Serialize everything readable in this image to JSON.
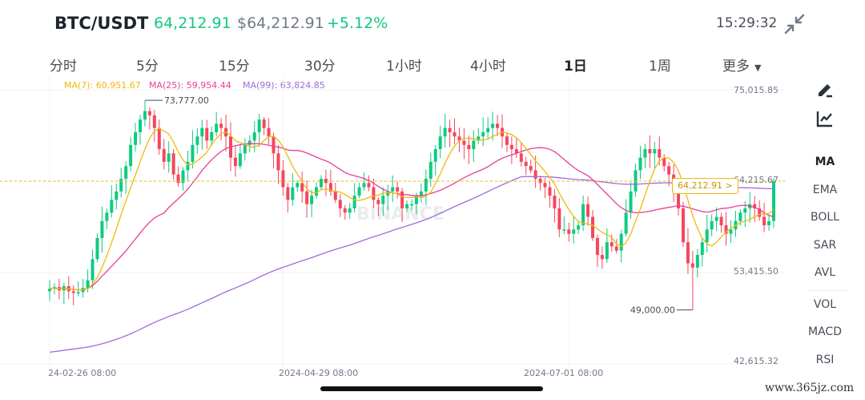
{
  "header": {
    "pair": "BTC/USDT",
    "last_price": "64,212.91",
    "usd_price": "$64,212.91",
    "change": "+5.12%",
    "time": "15:29:32",
    "collapse_icon": "collapse-arrows-icon"
  },
  "timeframes": {
    "items": [
      "分时",
      "5分",
      "15分",
      "30分",
      "1小时",
      "4小时",
      "1日",
      "1周",
      "更多"
    ],
    "active": "1日"
  },
  "ma_legend": {
    "ma7": "MA(7): 60,951.67",
    "ma25": "MA(25): 59,954.44",
    "ma99": "MA(99): 63,824.85"
  },
  "price_axis": [
    "75,015.85",
    "64,215.67",
    "53,415.50",
    "42,615.32"
  ],
  "annotations": {
    "high": "73,777.00",
    "low": "49,000.00",
    "current_bubble": "64,212.91",
    "bubble_arrow": ">"
  },
  "date_axis": [
    "24-02-26 08:00",
    "2024-04-29 08:00",
    "2024-07-01 08:00"
  ],
  "watermark": "BINANCE",
  "side_indicators": {
    "main": [
      "MA",
      "EMA",
      "BOLL",
      "SAR",
      "AVL"
    ],
    "sub": [
      "VOL",
      "MACD",
      "RSI"
    ],
    "active": "MA"
  },
  "tools": [
    "draw-pen-icon",
    "indicator-chart-icon"
  ],
  "site_watermark": "www.365jz.com",
  "colors": {
    "up": "#0ecb81",
    "down": "#f6465d",
    "ma7": "#f0b90b",
    "ma25": "#e93e9a",
    "ma99": "#9f6bdb",
    "last_line": "#f0b90b"
  },
  "chart_data": {
    "type": "candlestick",
    "y_range": [
      42615.32,
      75015.85
    ],
    "high": 73777,
    "low": 49000,
    "last": 64212.91,
    "close_series": [
      51500,
      51700,
      51300,
      51800,
      51200,
      51000,
      51100,
      51600,
      52500,
      55000,
      57500,
      59500,
      60500,
      62000,
      63000,
      64500,
      66000,
      68500,
      70000,
      71500,
      72500,
      72000,
      70500,
      68000,
      66500,
      67500,
      65000,
      64000,
      65500,
      66500,
      68500,
      69500,
      70500,
      69000,
      70000,
      71000,
      70500,
      69500,
      67000,
      66000,
      67500,
      68500,
      69000,
      70000,
      71500,
      70500,
      69500,
      67500,
      65500,
      63500,
      62000,
      63500,
      64000,
      63000,
      61500,
      62500,
      63500,
      64500,
      64000,
      63000,
      62000,
      61000,
      60500,
      61000,
      62500,
      63500,
      64000,
      63500,
      62000,
      61500,
      62500,
      63000,
      63500,
      63000,
      61000,
      61500,
      61500,
      62500,
      63000,
      64500,
      66500,
      68000,
      69500,
      70500,
      70000,
      69500,
      69000,
      68500,
      68000,
      69000,
      69500,
      70000,
      70500,
      71000,
      70500,
      69500,
      68500,
      68000,
      67500,
      66500,
      66000,
      65500,
      64500,
      64000,
      63500,
      62500,
      61000,
      58500,
      58500,
      58000,
      58500,
      59000,
      61500,
      60000,
      57500,
      55500,
      55000,
      57000,
      56500,
      56000,
      58000,
      60500,
      63000,
      65500,
      67000,
      68000,
      67500,
      68000,
      67000,
      66000,
      65000,
      63500,
      61000,
      57000,
      54500,
      54000,
      55500,
      57000,
      58500,
      59500,
      60000,
      59000,
      58000,
      58500,
      59500,
      60500,
      61000,
      61500,
      61000,
      60000,
      59000,
      59500,
      64212
    ]
  }
}
